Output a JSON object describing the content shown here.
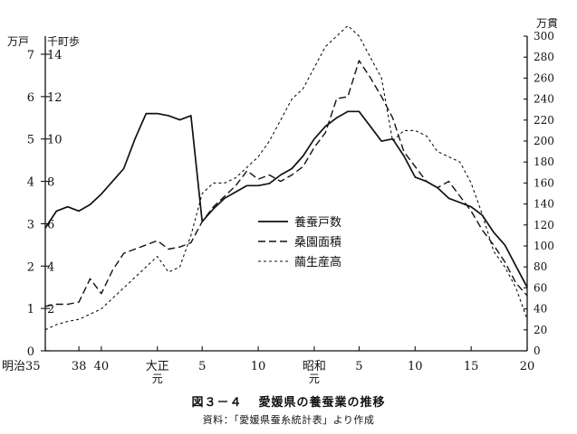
{
  "figure": {
    "number": "図３－４",
    "title": "愛媛県の養蚕業の推移",
    "source": "資料：「愛媛県蚕糸統計表」より作成"
  },
  "chart_data": {
    "type": "line",
    "left_axis": {
      "unit_outer": "万戸",
      "unit_inner": "千町歩",
      "outer_range": [
        0,
        7
      ],
      "inner_range": [
        0,
        14
      ],
      "ticks": [
        {
          "outer": "0",
          "inner": ""
        },
        {
          "outer": "1",
          "inner": "2"
        },
        {
          "outer": "2",
          "inner": "4"
        },
        {
          "outer": "3",
          "inner": "6"
        },
        {
          "outer": "4",
          "inner": "8"
        },
        {
          "outer": "5",
          "inner": "10"
        },
        {
          "outer": "6",
          "inner": "12"
        },
        {
          "outer": "7",
          "inner": "14"
        }
      ]
    },
    "right_axis": {
      "unit": "万貫",
      "range": [
        0,
        300
      ],
      "ticks": [
        "0",
        "20",
        "40",
        "60",
        "80",
        "100",
        "120",
        "140",
        "160",
        "180",
        "200",
        "220",
        "240",
        "260",
        "280",
        "300"
      ]
    },
    "x_axis": {
      "range": [
        1902,
        1945
      ],
      "ticks": [
        {
          "year": 1902,
          "label": "明治35",
          "sub": ""
        },
        {
          "year": 1905,
          "label": "38",
          "sub": ""
        },
        {
          "year": 1907,
          "label": "40",
          "sub": ""
        },
        {
          "year": 1912,
          "label": "大正",
          "sub": "元"
        },
        {
          "year": 1916,
          "label": "5",
          "sub": ""
        },
        {
          "year": 1921,
          "label": "10",
          "sub": ""
        },
        {
          "year": 1926,
          "label": "昭和",
          "sub": "元"
        },
        {
          "year": 1930,
          "label": "5",
          "sub": ""
        },
        {
          "year": 1935,
          "label": "10",
          "sub": ""
        },
        {
          "year": 1940,
          "label": "15",
          "sub": ""
        },
        {
          "year": 1945,
          "label": "20",
          "sub": ""
        }
      ]
    },
    "legend": {
      "position": "center-right"
    },
    "grid": false,
    "series": [
      {
        "name": "養蚕戸数",
        "style": "solid",
        "axis": "left_outer",
        "x": [
          1902,
          1903,
          1904,
          1905,
          1906,
          1907,
          1908,
          1909,
          1910,
          1911,
          1912,
          1913,
          1914,
          1915,
          1916,
          1917,
          1918,
          1919,
          1920,
          1921,
          1922,
          1923,
          1924,
          1925,
          1926,
          1927,
          1928,
          1929,
          1930,
          1931,
          1932,
          1933,
          1934,
          1935,
          1936,
          1937,
          1938,
          1939,
          1940,
          1941,
          1942,
          1943,
          1944,
          1945
        ],
        "y": [
          2.9,
          3.3,
          3.4,
          3.3,
          3.45,
          3.7,
          4.0,
          4.3,
          5.0,
          5.6,
          5.6,
          5.55,
          5.45,
          5.55,
          3.05,
          3.35,
          3.6,
          3.75,
          3.9,
          3.9,
          3.95,
          4.15,
          4.3,
          4.6,
          5.0,
          5.3,
          5.5,
          5.65,
          5.65,
          5.3,
          4.95,
          5.0,
          4.6,
          4.1,
          4.0,
          3.85,
          3.6,
          3.5,
          3.4,
          3.2,
          2.8,
          2.5,
          2.0,
          1.5
        ]
      },
      {
        "name": "桑園面積",
        "style": "dashed",
        "axis": "left_inner",
        "x": [
          1902,
          1903,
          1904,
          1905,
          1906,
          1907,
          1908,
          1909,
          1910,
          1911,
          1912,
          1913,
          1914,
          1915,
          1916,
          1917,
          1918,
          1919,
          1920,
          1921,
          1922,
          1923,
          1924,
          1925,
          1926,
          1927,
          1928,
          1929,
          1930,
          1931,
          1932,
          1933,
          1934,
          1935,
          1936,
          1937,
          1938,
          1939,
          1940,
          1941,
          1942,
          1943,
          1944,
          1945
        ],
        "y": [
          2.1,
          2.2,
          2.2,
          2.3,
          3.4,
          2.7,
          3.8,
          4.6,
          4.8,
          5.0,
          5.2,
          4.8,
          4.9,
          5.1,
          6.1,
          6.8,
          7.3,
          7.8,
          8.5,
          8.1,
          8.3,
          8.0,
          8.3,
          8.7,
          9.6,
          10.3,
          11.9,
          12.0,
          13.7,
          12.9,
          12.0,
          11.0,
          9.4,
          8.7,
          8.0,
          7.7,
          8.0,
          7.3,
          6.6,
          5.7,
          5.0,
          4.2,
          3.2,
          2.6
        ]
      },
      {
        "name": "繭生産高",
        "style": "fine-dashed",
        "axis": "right",
        "x": [
          1902,
          1903,
          1904,
          1905,
          1906,
          1907,
          1908,
          1909,
          1910,
          1911,
          1912,
          1913,
          1914,
          1915,
          1916,
          1917,
          1918,
          1919,
          1920,
          1921,
          1922,
          1923,
          1924,
          1925,
          1926,
          1927,
          1928,
          1929,
          1930,
          1931,
          1932,
          1933,
          1934,
          1935,
          1936,
          1937,
          1938,
          1939,
          1940,
          1941,
          1942,
          1943,
          1944,
          1945
        ],
        "y": [
          20,
          25,
          28,
          30,
          35,
          40,
          50,
          60,
          70,
          80,
          90,
          75,
          80,
          110,
          150,
          160,
          160,
          165,
          175,
          185,
          200,
          220,
          240,
          250,
          270,
          290,
          300,
          310,
          300,
          280,
          260,
          200,
          210,
          210,
          205,
          190,
          185,
          180,
          160,
          130,
          95,
          80,
          60,
          30
        ]
      }
    ]
  }
}
